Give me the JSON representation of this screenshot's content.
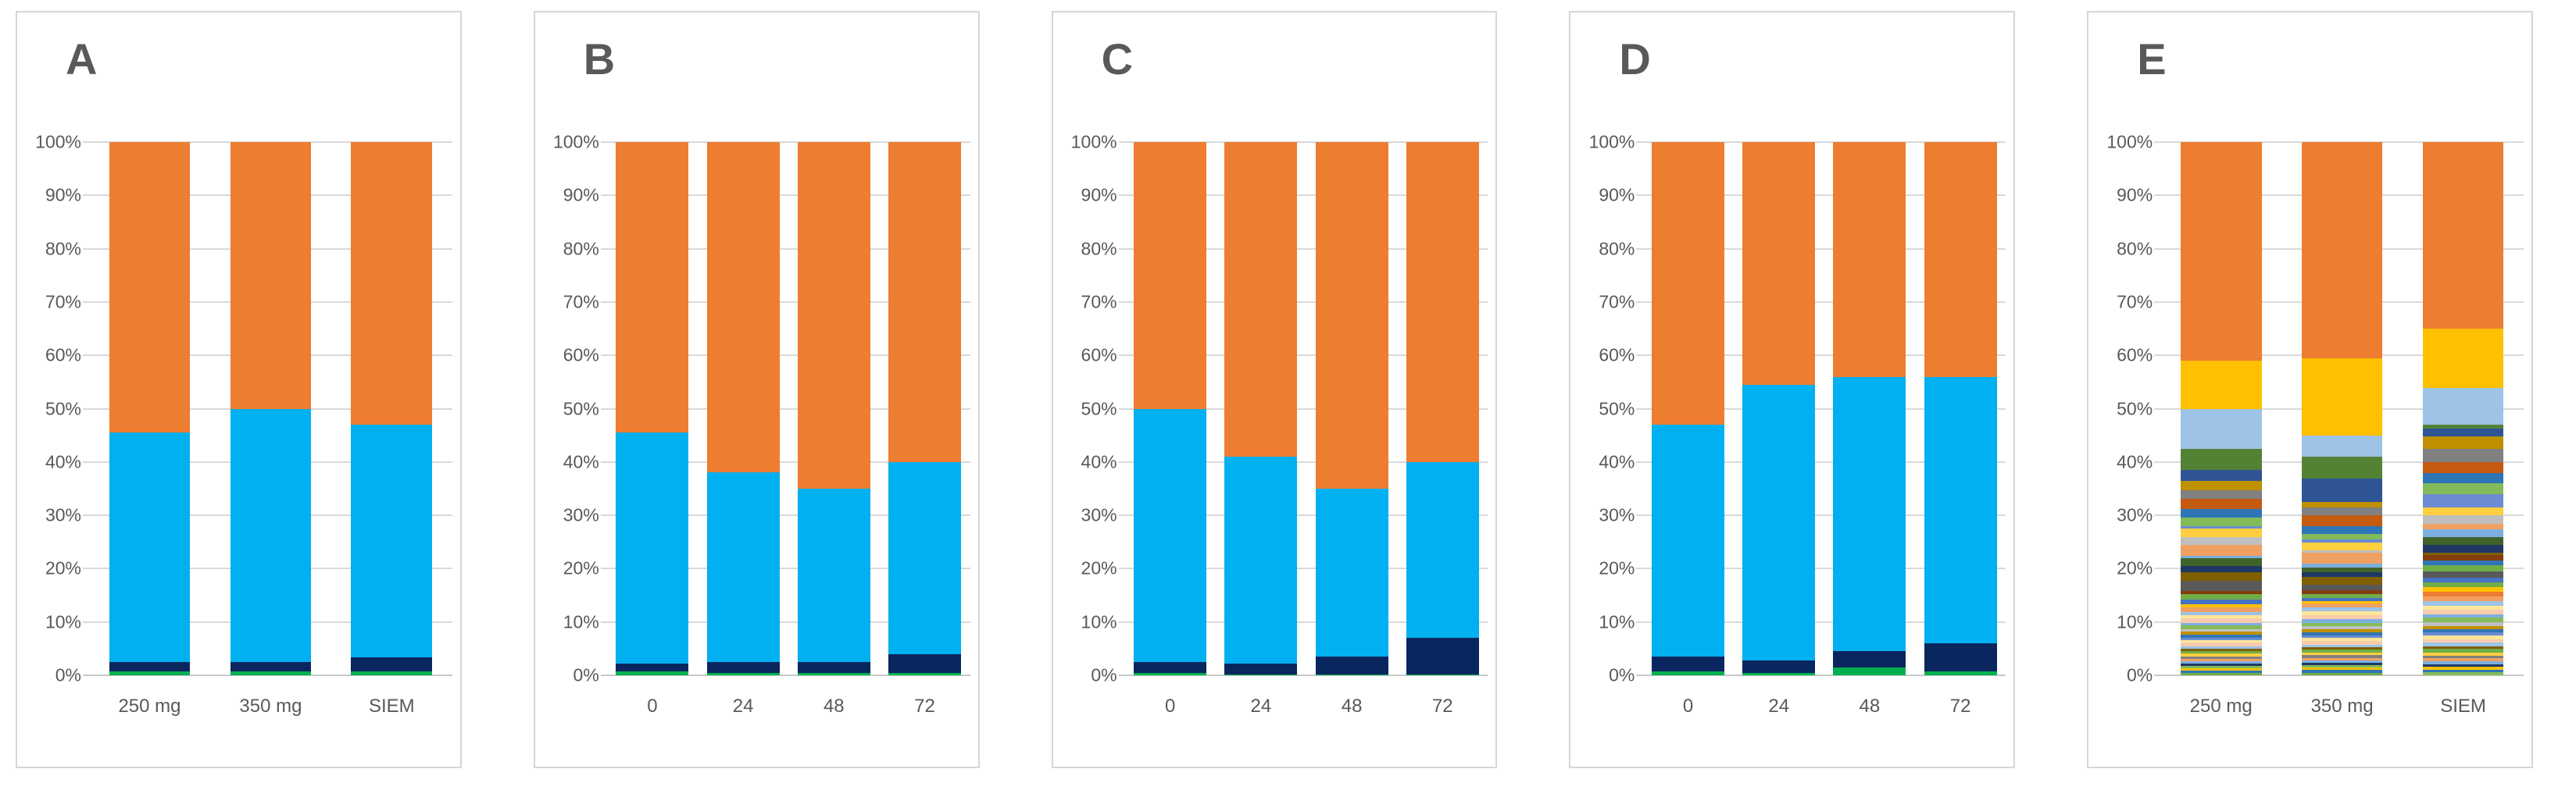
{
  "figure": {
    "description": "Five-panel figure of 100% stacked bar charts",
    "panel_letters": [
      "A",
      "B",
      "C",
      "D",
      "E"
    ]
  },
  "colors": {
    "panel_border": "#d6d6d6",
    "gridline": "#d9d9d9",
    "baseline": "#c9c9c9",
    "axis_text": "#595959",
    "panel_letter": "#595959",
    "background": "#ffffff"
  },
  "y_axis": {
    "ticks": [
      "100%",
      "90%",
      "80%",
      "70%",
      "60%",
      "50%",
      "40%",
      "30%",
      "20%",
      "10%",
      "0%"
    ]
  },
  "palette": {
    "orange": "#ED7D31",
    "gold": "#FFC000",
    "lightblue": "#9DC3E6",
    "green548": "#548235",
    "darkblue": "#2F5597",
    "olive": "#BF9000",
    "gray": "#808080",
    "darkorange": "#C55A11",
    "blue": "#2E75B6",
    "lightgreen": "#84BB5A",
    "cornflower": "#6B8CD1",
    "yellow": "#FFCF40",
    "silver": "#BFBFBF",
    "salmon": "#F0A061",
    "skyblue": "#7CAFE0",
    "darkgreen": "#40632B",
    "navy864": "#1F3864",
    "darkolive": "#7F6000",
    "darkgray": "#595959",
    "brown": "#843C0C",
    "medgreen": "#70AD47",
    "royalblue": "#4472C4",
    "cream": "#FFE699",
    "peach": "#F8CBAD",
    "cyan": "#00B0F0",
    "navy": "#0A265E",
    "brightgreen": "#00B050"
  },
  "chart_data": [
    {
      "panel": "A",
      "type": "bar",
      "stacked": true,
      "grid": true,
      "legend": false,
      "title": "",
      "xlabel": "",
      "ylabel": "",
      "ylim": [
        0,
        100
      ],
      "categories": [
        "250 mg",
        "350 mg",
        "SIEM"
      ],
      "series": [
        {
          "name": "bright green (bottom)",
          "color_key": "brightgreen",
          "values": [
            0.7,
            0.7,
            0.7
          ]
        },
        {
          "name": "dark navy",
          "color_key": "navy",
          "values": [
            1.8,
            1.8,
            2.6
          ]
        },
        {
          "name": "light blue",
          "color_key": "cyan",
          "values": [
            43.0,
            47.5,
            43.7
          ]
        },
        {
          "name": "orange (top)",
          "color_key": "orange",
          "values": [
            54.5,
            50.0,
            53.0
          ]
        }
      ]
    },
    {
      "panel": "B",
      "type": "bar",
      "stacked": true,
      "grid": true,
      "legend": false,
      "title": "",
      "xlabel": "",
      "ylabel": "",
      "ylim": [
        0,
        100
      ],
      "categories": [
        "0",
        "24",
        "48",
        "72"
      ],
      "series": [
        {
          "name": "bright green (bottom)",
          "color_key": "brightgreen",
          "values": [
            0.8,
            0.5,
            0.5,
            0.5
          ]
        },
        {
          "name": "dark navy",
          "color_key": "navy",
          "values": [
            1.4,
            2.0,
            2.0,
            3.5
          ]
        },
        {
          "name": "light blue",
          "color_key": "cyan",
          "values": [
            43.3,
            35.5,
            32.5,
            36.0
          ]
        },
        {
          "name": "orange (top)",
          "color_key": "orange",
          "values": [
            54.5,
            62.0,
            65.0,
            60.0
          ]
        }
      ]
    },
    {
      "panel": "C",
      "type": "bar",
      "stacked": true,
      "grid": true,
      "legend": false,
      "title": "",
      "xlabel": "",
      "ylabel": "",
      "ylim": [
        0,
        100
      ],
      "categories": [
        "0",
        "24",
        "48",
        "72"
      ],
      "series": [
        {
          "name": "bright green (bottom)",
          "color_key": "brightgreen",
          "values": [
            0.5,
            0.2,
            0.2,
            0.2
          ]
        },
        {
          "name": "dark navy",
          "color_key": "navy",
          "values": [
            2.0,
            2.0,
            3.3,
            6.8
          ]
        },
        {
          "name": "light blue",
          "color_key": "cyan",
          "values": [
            47.5,
            38.8,
            31.5,
            33.0
          ]
        },
        {
          "name": "orange (top)",
          "color_key": "orange",
          "values": [
            50.0,
            59.0,
            65.0,
            60.0
          ]
        }
      ]
    },
    {
      "panel": "D",
      "type": "bar",
      "stacked": true,
      "grid": true,
      "legend": false,
      "title": "",
      "xlabel": "",
      "ylabel": "",
      "ylim": [
        0,
        100
      ],
      "categories": [
        "0",
        "24",
        "48",
        "72"
      ],
      "series": [
        {
          "name": "bright green (bottom)",
          "color_key": "brightgreen",
          "values": [
            0.7,
            0.5,
            1.5,
            0.7
          ]
        },
        {
          "name": "dark navy",
          "color_key": "navy",
          "values": [
            2.8,
            2.3,
            3.0,
            5.3
          ]
        },
        {
          "name": "light blue",
          "color_key": "cyan",
          "values": [
            43.5,
            51.7,
            51.5,
            50.0
          ]
        },
        {
          "name": "orange (top)",
          "color_key": "orange",
          "values": [
            53.0,
            45.5,
            44.0,
            44.0
          ]
        }
      ]
    },
    {
      "panel": "E",
      "type": "bar",
      "stacked": true,
      "grid": true,
      "legend": false,
      "title": "",
      "xlabel": "",
      "ylabel": "",
      "ylim": [
        0,
        100
      ],
      "categories": [
        "250 mg",
        "350 mg",
        "SIEM"
      ],
      "note": "many taxa/segments per bar, listed bottom-to-top as [percent, palette_key]",
      "bars": [
        {
          "category": "250 mg",
          "segments": [
            [
              0.5,
              "medgreen"
            ],
            [
              0.4,
              "blue"
            ],
            [
              0.4,
              "gold"
            ],
            [
              0.5,
              "lightgreen"
            ],
            [
              0.4,
              "navy864"
            ],
            [
              0.4,
              "skyblue"
            ],
            [
              0.5,
              "salmon"
            ],
            [
              0.5,
              "gray"
            ],
            [
              0.5,
              "yellow"
            ],
            [
              0.5,
              "medgreen"
            ],
            [
              0.4,
              "darkolive"
            ],
            [
              0.5,
              "lightblue"
            ],
            [
              0.6,
              "peach"
            ],
            [
              0.5,
              "cream"
            ],
            [
              0.5,
              "cornflower"
            ],
            [
              0.6,
              "blue"
            ],
            [
              0.5,
              "olive"
            ],
            [
              0.5,
              "silver"
            ],
            [
              0.7,
              "lightgreen"
            ],
            [
              0.5,
              "skyblue"
            ],
            [
              0.8,
              "peach"
            ],
            [
              0.6,
              "cream"
            ],
            [
              0.6,
              "lightblue"
            ],
            [
              0.8,
              "salmon"
            ],
            [
              0.7,
              "gold"
            ],
            [
              0.8,
              "royalblue"
            ],
            [
              1.0,
              "medgreen"
            ],
            [
              0.6,
              "brown"
            ],
            [
              2.0,
              "darkgray"
            ],
            [
              1.5,
              "darkolive"
            ],
            [
              1.2,
              "navy864"
            ],
            [
              1.5,
              "darkgreen"
            ],
            [
              0.5,
              "skyblue"
            ],
            [
              2.0,
              "salmon"
            ],
            [
              1.5,
              "silver"
            ],
            [
              1.6,
              "yellow"
            ],
            [
              0.4,
              "cornflower"
            ],
            [
              1.6,
              "lightgreen"
            ],
            [
              1.6,
              "blue"
            ],
            [
              2.0,
              "darkorange"
            ],
            [
              1.6,
              "gray"
            ],
            [
              1.7,
              "olive"
            ],
            [
              2.0,
              "darkblue"
            ],
            [
              4.0,
              "green548"
            ],
            [
              7.5,
              "lightblue"
            ],
            [
              9.0,
              "gold"
            ],
            [
              41.0,
              "orange"
            ]
          ]
        },
        {
          "category": "350 mg",
          "segments": [
            [
              0.5,
              "medgreen"
            ],
            [
              0.5,
              "blue"
            ],
            [
              0.4,
              "gold"
            ],
            [
              0.5,
              "lightgreen"
            ],
            [
              0.5,
              "navy864"
            ],
            [
              0.4,
              "skyblue"
            ],
            [
              0.5,
              "salmon"
            ],
            [
              0.5,
              "gray"
            ],
            [
              0.5,
              "yellow"
            ],
            [
              0.5,
              "medgreen"
            ],
            [
              0.5,
              "darkolive"
            ],
            [
              0.5,
              "lightblue"
            ],
            [
              0.6,
              "peach"
            ],
            [
              0.6,
              "cream"
            ],
            [
              0.5,
              "cornflower"
            ],
            [
              0.6,
              "blue"
            ],
            [
              0.5,
              "olive"
            ],
            [
              0.6,
              "silver"
            ],
            [
              0.7,
              "lightgreen"
            ],
            [
              0.6,
              "skyblue"
            ],
            [
              0.8,
              "peach"
            ],
            [
              0.7,
              "cream"
            ],
            [
              0.7,
              "lightblue"
            ],
            [
              0.8,
              "salmon"
            ],
            [
              0.5,
              "gold"
            ],
            [
              0.6,
              "royalblue"
            ],
            [
              0.7,
              "medgreen"
            ],
            [
              0.7,
              "brown"
            ],
            [
              1.0,
              "darkgray"
            ],
            [
              1.5,
              "darkolive"
            ],
            [
              0.8,
              "navy864"
            ],
            [
              1.0,
              "darkgreen"
            ],
            [
              0.7,
              "skyblue"
            ],
            [
              2.0,
              "salmon"
            ],
            [
              0.5,
              "silver"
            ],
            [
              1.5,
              "yellow"
            ],
            [
              0.5,
              "cornflower"
            ],
            [
              1.0,
              "lightgreen"
            ],
            [
              1.5,
              "blue"
            ],
            [
              2.0,
              "darkorange"
            ],
            [
              1.5,
              "gray"
            ],
            [
              1.0,
              "olive"
            ],
            [
              4.5,
              "darkblue"
            ],
            [
              4.0,
              "green548"
            ],
            [
              4.0,
              "lightblue"
            ],
            [
              14.5,
              "gold"
            ],
            [
              40.5,
              "orange"
            ]
          ]
        },
        {
          "category": "SIEM",
          "segments": [
            [
              0.6,
              "lightgreen"
            ],
            [
              0.5,
              "blue"
            ],
            [
              0.5,
              "gold"
            ],
            [
              0.5,
              "navy864"
            ],
            [
              0.5,
              "skyblue"
            ],
            [
              0.6,
              "salmon"
            ],
            [
              0.5,
              "gray"
            ],
            [
              0.6,
              "yellow"
            ],
            [
              0.7,
              "medgreen"
            ],
            [
              0.5,
              "darkolive"
            ],
            [
              0.6,
              "lightblue"
            ],
            [
              0.7,
              "peach"
            ],
            [
              0.7,
              "cream"
            ],
            [
              0.6,
              "cornflower"
            ],
            [
              0.6,
              "blue"
            ],
            [
              0.6,
              "olive"
            ],
            [
              0.7,
              "silver"
            ],
            [
              0.8,
              "lightgreen"
            ],
            [
              0.7,
              "skyblue"
            ],
            [
              0.8,
              "peach"
            ],
            [
              0.8,
              "cream"
            ],
            [
              0.8,
              "lightblue"
            ],
            [
              0.9,
              "salmon"
            ],
            [
              0.9,
              "orange"
            ],
            [
              0.9,
              "gold"
            ],
            [
              0.9,
              "medgreen"
            ],
            [
              0.9,
              "royalblue"
            ],
            [
              1.1,
              "darkgray"
            ],
            [
              1.2,
              "medgreen"
            ],
            [
              0.8,
              "blue"
            ],
            [
              1.1,
              "brown"
            ],
            [
              0.4,
              "darkolive"
            ],
            [
              1.5,
              "navy864"
            ],
            [
              1.5,
              "darkgreen"
            ],
            [
              1.5,
              "skyblue"
            ],
            [
              1.0,
              "salmon"
            ],
            [
              1.5,
              "silver"
            ],
            [
              1.5,
              "yellow"
            ],
            [
              2.5,
              "cornflower"
            ],
            [
              2.0,
              "lightgreen"
            ],
            [
              2.0,
              "blue"
            ],
            [
              2.0,
              "darkorange"
            ],
            [
              2.5,
              "gray"
            ],
            [
              2.3,
              "olive"
            ],
            [
              1.5,
              "darkblue"
            ],
            [
              0.7,
              "green548"
            ],
            [
              7.0,
              "lightblue"
            ],
            [
              11.0,
              "gold"
            ],
            [
              35.0,
              "orange"
            ]
          ]
        }
      ]
    }
  ]
}
